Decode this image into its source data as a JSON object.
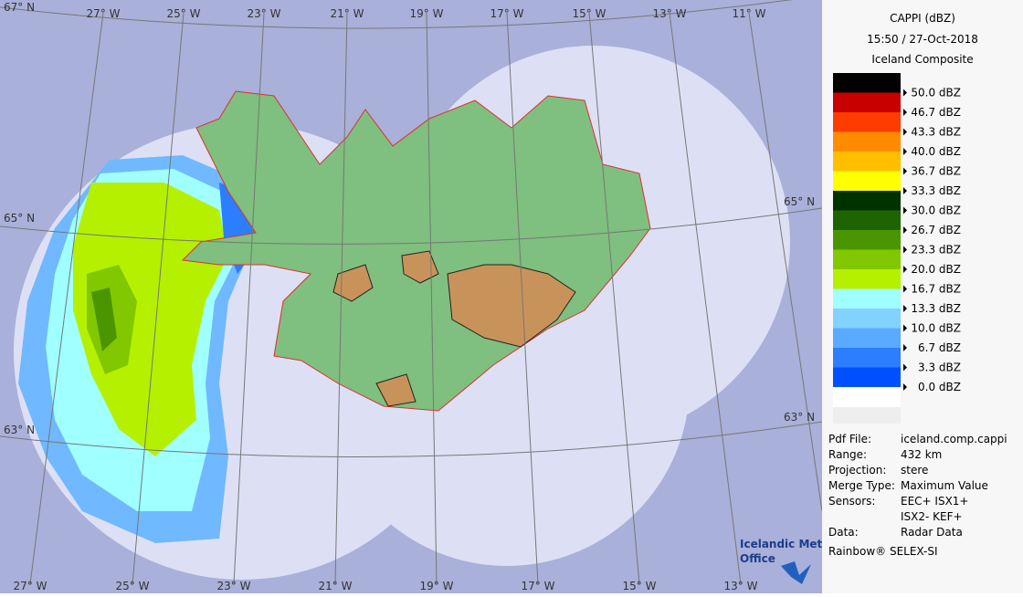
{
  "header": {
    "title": "CAPPI (dBZ)",
    "time": "15:50 / 27-Oct-2018",
    "name": "Iceland Composite"
  },
  "legend": {
    "levels": [
      {
        "label": "50.0 dBZ",
        "color": "#000000"
      },
      {
        "label": "46.7 dBZ",
        "color": "#c80000"
      },
      {
        "label": "43.3 dBZ",
        "color": "#ff3c00"
      },
      {
        "label": "40.0 dBZ",
        "color": "#ff8c00"
      },
      {
        "label": "36.7 dBZ",
        "color": "#ffbe00"
      },
      {
        "label": "33.3 dBZ",
        "color": "#ffff00"
      },
      {
        "label": "30.0 dBZ",
        "color": "#003200"
      },
      {
        "label": "26.7 dBZ",
        "color": "#1e6400"
      },
      {
        "label": "23.3 dBZ",
        "color": "#4b9600"
      },
      {
        "label": "20.0 dBZ",
        "color": "#82c800"
      },
      {
        "label": "16.7 dBZ",
        "color": "#b4f000"
      },
      {
        "label": "13.3 dBZ",
        "color": "#a0ffff"
      },
      {
        "label": "10.0 dBZ",
        "color": "#82d2ff"
      },
      {
        "label": "6.7 dBZ",
        "color": "#5aaaff"
      },
      {
        "label": "3.3 dBZ",
        "color": "#2d7dff"
      },
      {
        "label": "0.0 dBZ",
        "color": "#0050ff"
      }
    ]
  },
  "info": {
    "rows": [
      {
        "label": "Pdf File:",
        "value": [
          "iceland.comp.cappi"
        ]
      },
      {
        "label": "Range:",
        "value": [
          "432 km"
        ]
      },
      {
        "label": "Projection:",
        "value": [
          "stere"
        ]
      },
      {
        "label": "Merge Type:",
        "value": [
          "Maximum Value"
        ]
      },
      {
        "label": "Sensors:",
        "value": [
          "EEC+ ISX1+",
          "ISX2- KEF+"
        ]
      },
      {
        "label": "Data:",
        "value": [
          "Radar Data"
        ]
      }
    ],
    "footer": "Rainbow® SELEX-SI"
  },
  "logo": {
    "line1": "Icelandic Met",
    "line2": "Office"
  },
  "map": {
    "lon_top": [
      "27° W",
      "25° W",
      "23° W",
      "21° W",
      "19° W",
      "17° W",
      "15° W",
      "13° W",
      "11° W"
    ],
    "lon_bottom": [
      "27° W",
      "25° W",
      "23° W",
      "21° W",
      "19° W",
      "17° W",
      "15° W",
      "13° W"
    ],
    "lat_left": [
      "67° N",
      "65° N",
      "63° N"
    ],
    "lat_right": [
      "65° N",
      "63° N"
    ]
  }
}
